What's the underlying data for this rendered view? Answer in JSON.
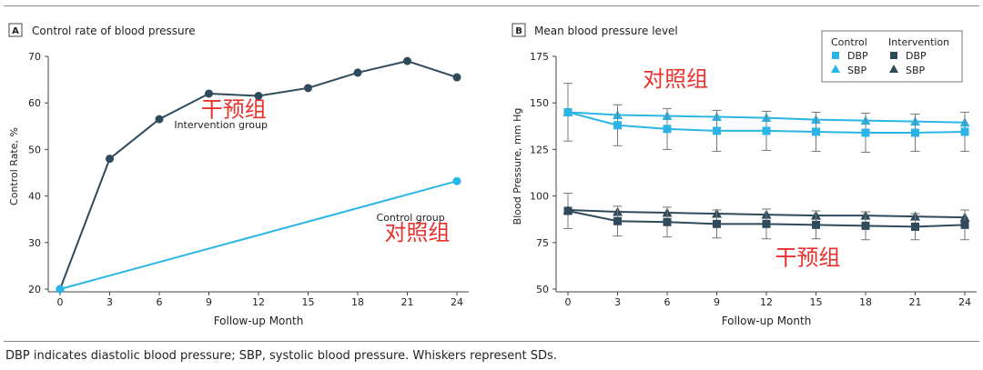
{
  "caption": "DBP indicates diastolic blood pressure; SBP, systolic blood pressure. Whiskers represent SDs.",
  "colors": {
    "control": "#2ab5e6",
    "intervention": "#2f4a5a",
    "annotation": "#e8322d",
    "axis": "#444444"
  },
  "chart_data": [
    {
      "type": "line",
      "panel_letter": "A",
      "title": "Control rate of blood pressure",
      "xlabel": "Follow-up Month",
      "ylabel": "Control Rate, %",
      "xlim": [
        0,
        24
      ],
      "ylim": [
        20,
        70
      ],
      "xticks": [
        0,
        3,
        6,
        9,
        12,
        15,
        18,
        21,
        24
      ],
      "yticks": [
        20,
        30,
        40,
        50,
        60,
        70
      ],
      "grid": false,
      "series": [
        {
          "name": "Intervention group",
          "color": "#2f4a5a",
          "x": [
            0,
            3,
            6,
            9,
            12,
            15,
            18,
            21,
            24
          ],
          "y": [
            20,
            48,
            56.5,
            62,
            61.5,
            63.2,
            66.5,
            69,
            65.5
          ]
        },
        {
          "name": "Control group",
          "color": "#2ab5e6",
          "x": [
            0,
            24
          ],
          "y": [
            20,
            43.2
          ]
        }
      ],
      "annotations": [
        {
          "text": "干预组",
          "x": 10.5,
          "y": 57,
          "color": "#e8322d"
        },
        {
          "text": "对照组",
          "x": 21.6,
          "y": 30.5,
          "color": "#e8322d"
        }
      ]
    },
    {
      "type": "line",
      "panel_letter": "B",
      "title": "Mean blood pressure level",
      "xlabel": "Follow-up Month",
      "ylabel": "Blood Pressure, mm Hg",
      "xlim": [
        0,
        24
      ],
      "ylim": [
        50,
        175
      ],
      "xticks": [
        0,
        3,
        6,
        9,
        12,
        15,
        18,
        21,
        24
      ],
      "yticks": [
        50,
        75,
        100,
        125,
        150,
        175
      ],
      "grid": false,
      "legend": {
        "position": "top-right",
        "groups": [
          {
            "title": "Control",
            "items": [
              {
                "label": "DBP",
                "marker": "square"
              },
              {
                "label": "SBP",
                "marker": "triangle"
              }
            ]
          },
          {
            "title": "Intervention",
            "items": [
              {
                "label": "DBP",
                "marker": "square"
              },
              {
                "label": "SBP",
                "marker": "triangle"
              }
            ]
          }
        ]
      },
      "series": [
        {
          "group": "Control",
          "measure": "SBP",
          "marker": "triangle",
          "color": "#2ab5e6",
          "x": [
            0,
            3,
            6,
            9,
            12,
            15,
            18,
            21,
            24
          ],
          "y": [
            145,
            143.5,
            143,
            142.5,
            142,
            141,
            140.5,
            140,
            139.5
          ]
        },
        {
          "group": "Control",
          "measure": "DBP",
          "marker": "square",
          "color": "#2ab5e6",
          "x": [
            0,
            3,
            6,
            9,
            12,
            15,
            18,
            21,
            24
          ],
          "y": [
            145,
            138,
            136,
            135,
            135,
            134.5,
            134,
            134,
            134.5
          ],
          "sd": [
            15.5,
            11,
            11,
            11,
            10.5,
            10.5,
            10.5,
            10,
            10.5
          ]
        },
        {
          "group": "Intervention",
          "measure": "SBP",
          "marker": "triangle",
          "color": "#2f4a5a",
          "x": [
            0,
            3,
            6,
            9,
            12,
            15,
            18,
            21,
            24
          ],
          "y": [
            92.5,
            91.5,
            91,
            90.5,
            90,
            89.5,
            89.5,
            89,
            88.5
          ]
        },
        {
          "group": "Intervention",
          "measure": "DBP",
          "marker": "square",
          "color": "#2f4a5a",
          "x": [
            0,
            3,
            6,
            9,
            12,
            15,
            18,
            21,
            24
          ],
          "y": [
            92,
            86.5,
            86,
            85,
            85,
            84.5,
            84,
            83.5,
            84.5
          ],
          "sd": [
            9.5,
            8,
            8,
            7.5,
            8,
            7.5,
            7.5,
            7,
            8
          ]
        }
      ],
      "annotations": [
        {
          "text": "对照组",
          "x": 6.5,
          "y": 159,
          "color": "#e8322d"
        },
        {
          "text": "干预组",
          "x": 14.5,
          "y": 63,
          "color": "#e8322d"
        }
      ]
    }
  ]
}
